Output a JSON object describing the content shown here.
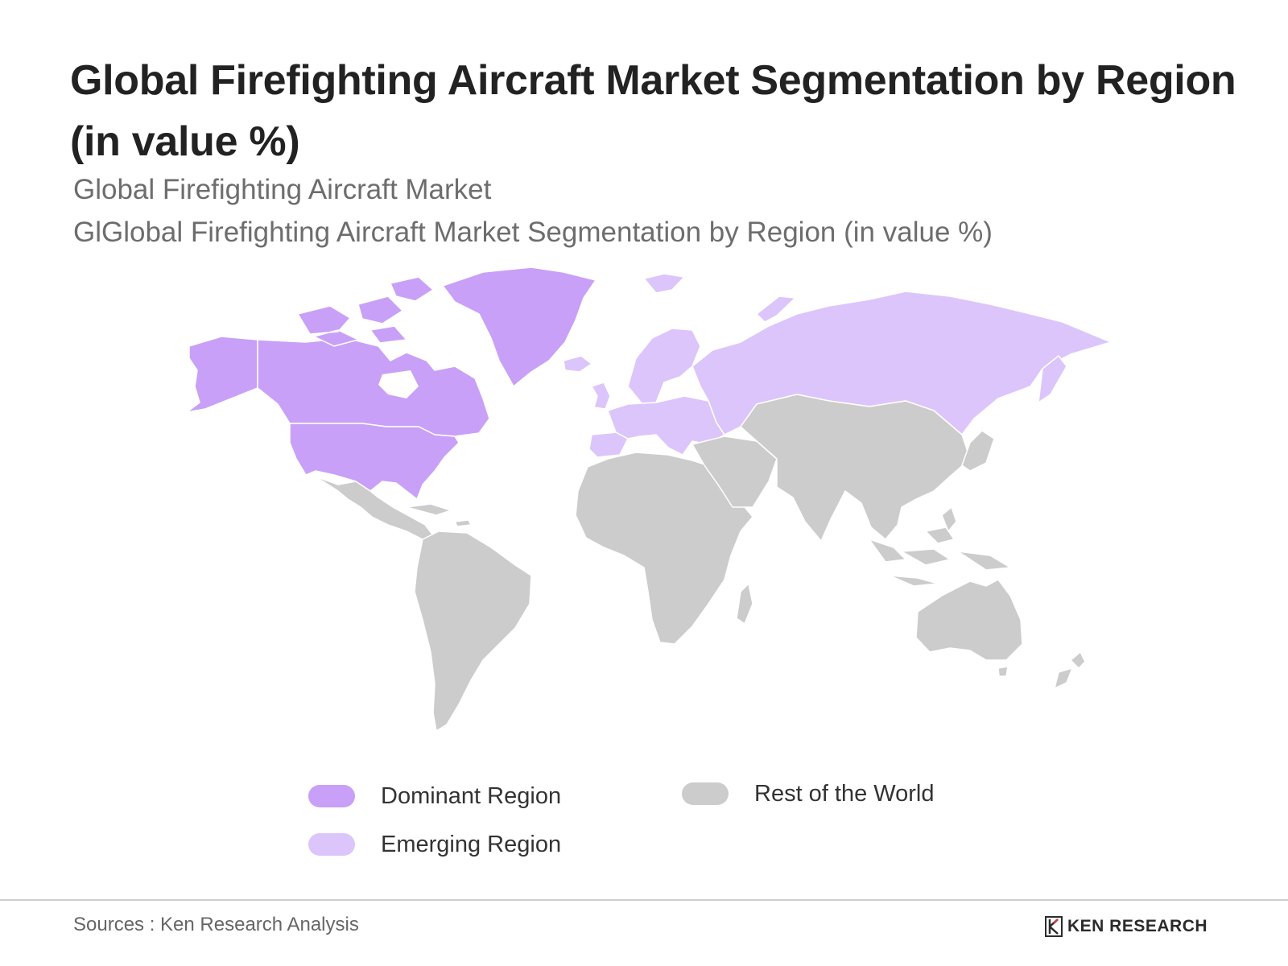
{
  "title": "Global Firefighting Aircraft Market Segmentation by Region (in value %)",
  "subtitle_1": "Global Firefighting Aircraft Market",
  "subtitle_2": "GlGlobal Firefighting Aircraft Market Segmentation by Region (in value %)",
  "map": {
    "regions": [
      {
        "name": "North America (incl. Greenland)",
        "category": "dominant"
      },
      {
        "name": "Europe & Russia",
        "category": "emerging"
      },
      {
        "name": "Latin America",
        "category": "rest"
      },
      {
        "name": "Africa",
        "category": "rest"
      },
      {
        "name": "Middle East & Asia",
        "category": "rest"
      },
      {
        "name": "Oceania",
        "category": "rest"
      }
    ]
  },
  "legend": {
    "dominant": {
      "label": "Dominant Region",
      "color": "#c9a0f7"
    },
    "emerging": {
      "label": "Emerging Region",
      "color": "#dcc5fb"
    },
    "rest": {
      "label": "Rest of the World",
      "color": "#cccccc"
    }
  },
  "footer": {
    "source": "Sources : Ken Research Analysis",
    "logo_text": "KEN RESEARCH"
  }
}
